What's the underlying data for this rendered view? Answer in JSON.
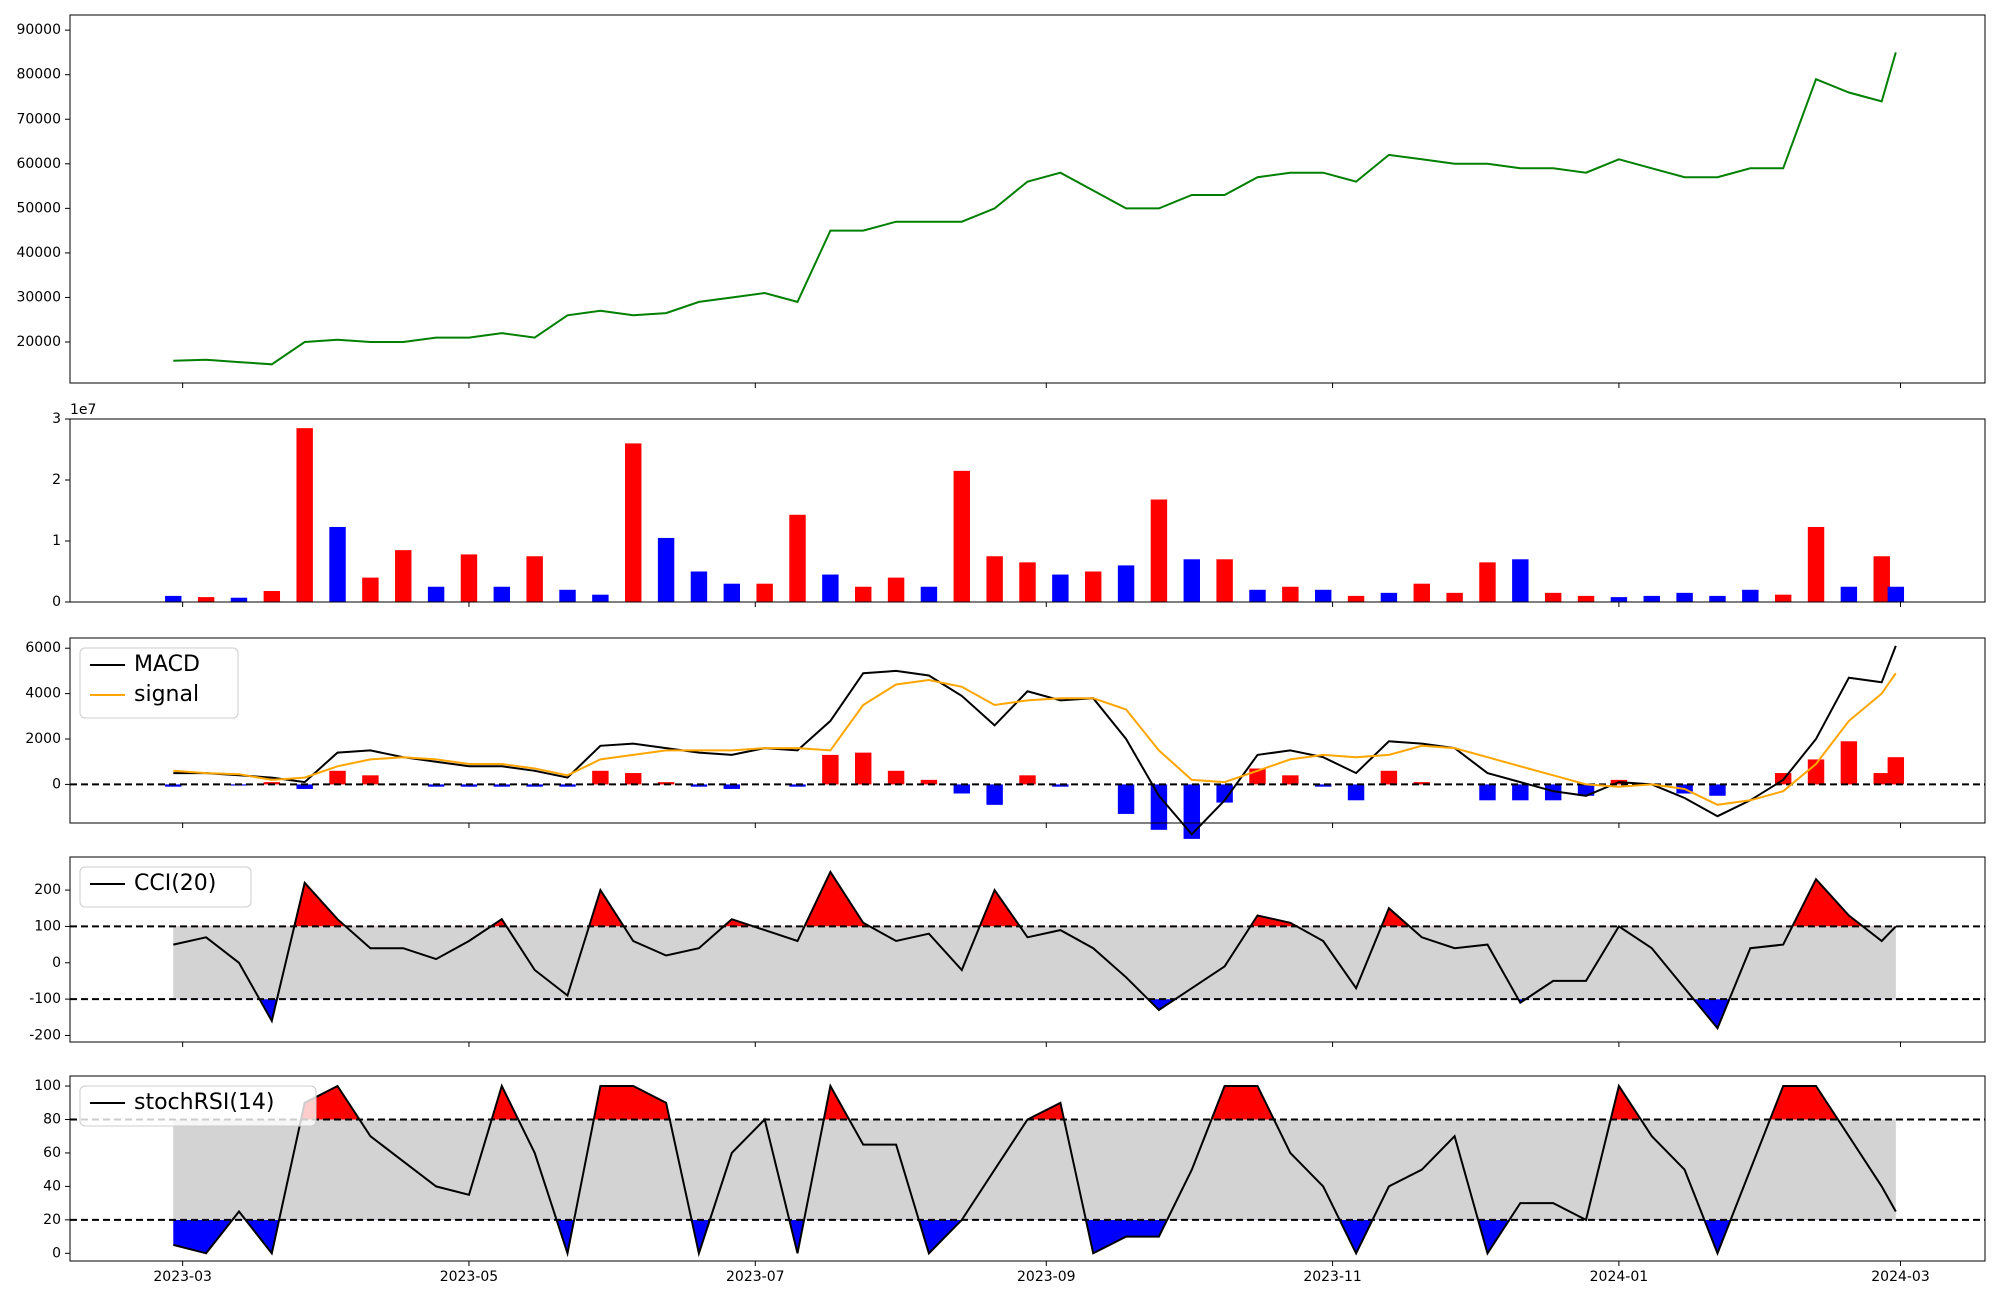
{
  "chart_data": {
    "type": "indicator-panels",
    "x": [
      "2023-02-27",
      "2023-03-06",
      "2023-03-13",
      "2023-03-20",
      "2023-03-27",
      "2023-04-03",
      "2023-04-10",
      "2023-04-17",
      "2023-04-24",
      "2023-05-01",
      "2023-05-08",
      "2023-05-15",
      "2023-05-22",
      "2023-05-29",
      "2023-06-05",
      "2023-06-12",
      "2023-06-19",
      "2023-06-26",
      "2023-07-03",
      "2023-07-10",
      "2023-07-17",
      "2023-07-24",
      "2023-07-31",
      "2023-08-07",
      "2023-08-14",
      "2023-08-21",
      "2023-08-28",
      "2023-09-04",
      "2023-09-11",
      "2023-09-18",
      "2023-09-25",
      "2023-10-02",
      "2023-10-09",
      "2023-10-16",
      "2023-10-23",
      "2023-10-30",
      "2023-11-06",
      "2023-11-13",
      "2023-11-20",
      "2023-11-27",
      "2023-12-04",
      "2023-12-11",
      "2023-12-18",
      "2023-12-25",
      "2024-01-01",
      "2024-01-08",
      "2024-01-15",
      "2024-01-22",
      "2024-01-29",
      "2024-02-05",
      "2024-02-12",
      "2024-02-19",
      "2024-02-26",
      "2024-02-29"
    ],
    "xlim": [
      "2023-02-05",
      "2024-03-19"
    ],
    "xticks": [
      {
        "value": "2023-03-01",
        "label": "2023-03"
      },
      {
        "value": "2023-05-01",
        "label": "2023-05"
      },
      {
        "value": "2023-07-01",
        "label": "2023-07"
      },
      {
        "value": "2023-09-01",
        "label": "2023-09"
      },
      {
        "value": "2023-11-01",
        "label": "2023-11"
      },
      {
        "value": "2024-01-01",
        "label": "2024-01"
      },
      {
        "value": "2024-03-01",
        "label": "2024-03"
      }
    ],
    "panels": [
      {
        "type": "line",
        "color": "#008000",
        "values": [
          15800,
          16000,
          15500,
          15000,
          20000,
          20500,
          20000,
          20000,
          21000,
          21000,
          22000,
          21000,
          26000,
          27000,
          26000,
          26500,
          29000,
          30000,
          31000,
          29000,
          45000,
          45000,
          47000,
          47000,
          47000,
          50000,
          56000,
          58000,
          54000,
          50000,
          50000,
          53000,
          53000,
          57000,
          58000,
          58000,
          56000,
          62000,
          61000,
          60000,
          60000,
          59000,
          59000,
          58000,
          61000,
          59000,
          57000,
          57000,
          59000,
          59000,
          79000,
          76000,
          74000,
          85000
        ],
        "ylim": [
          10800,
          93400
        ],
        "yticks": [
          20000,
          30000,
          40000,
          50000,
          60000,
          70000,
          80000,
          90000
        ]
      },
      {
        "type": "bar",
        "values": [
          1000000,
          800000,
          700000,
          1800000,
          28500000,
          12300000,
          4000000,
          8500000,
          2500000,
          7800000,
          2500000,
          7500000,
          2000000,
          1200000,
          26000000,
          10500000,
          5000000,
          3000000,
          3000000,
          14300000,
          4500000,
          2500000,
          4000000,
          2500000,
          21500000,
          7500000,
          6500000,
          4500000,
          5000000,
          6000000,
          16800000,
          7000000,
          7000000,
          2000000,
          2500000,
          2000000,
          1000000,
          1500000,
          3000000,
          1500000,
          6500000,
          7000000,
          1500000,
          1000000,
          800000,
          1000000,
          1500000,
          1000000,
          2000000,
          1200000,
          12300000,
          2500000,
          7500000,
          2500000
        ],
        "colors": [
          "#0000ff",
          "#ff0000",
          "#0000ff",
          "#ff0000",
          "#ff0000",
          "#0000ff",
          "#ff0000",
          "#ff0000",
          "#0000ff",
          "#ff0000",
          "#0000ff",
          "#ff0000",
          "#0000ff",
          "#0000ff",
          "#ff0000",
          "#0000ff",
          "#0000ff",
          "#0000ff",
          "#ff0000",
          "#ff0000",
          "#0000ff",
          "#ff0000",
          "#ff0000",
          "#0000ff",
          "#ff0000",
          "#ff0000",
          "#ff0000",
          "#0000ff",
          "#ff0000",
          "#0000ff",
          "#ff0000",
          "#0000ff",
          "#ff0000",
          "#0000ff",
          "#ff0000",
          "#0000ff",
          "#ff0000",
          "#0000ff",
          "#ff0000",
          "#ff0000",
          "#ff0000",
          "#0000ff",
          "#ff0000",
          "#ff0000",
          "#0000ff",
          "#0000ff",
          "#0000ff",
          "#0000ff",
          "#0000ff",
          "#ff0000",
          "#ff0000",
          "#0000ff",
          "#ff0000",
          "#0000ff"
        ],
        "ylim": [
          0,
          30000000
        ],
        "yticks": [
          0,
          {
            "value": 10000000,
            "label": "1"
          },
          {
            "value": 20000000,
            "label": "2"
          },
          {
            "value": 30000000,
            "label": "3"
          }
        ],
        "y_offset_label": "1e7"
      },
      {
        "type": "macd",
        "legend": "upper left",
        "series": [
          {
            "name": "MACD",
            "color": "#000000",
            "values": [
              500,
              500,
              400,
              300,
              100,
              1400,
              1500,
              1200,
              1000,
              800,
              800,
              600,
              300,
              1700,
              1800,
              1600,
              1400,
              1300,
              1600,
              1500,
              2800,
              4900,
              5000,
              4800,
              3900,
              2600,
              4100,
              3700,
              3800,
              2000,
              -500,
              -2200,
              -700,
              1300,
              1500,
              1200,
              500,
              1900,
              1800,
              1600,
              500,
              100,
              -300,
              -500,
              100,
              0,
              -600,
              -1400,
              -700,
              200,
              2000,
              4700,
              4500,
              6100
            ]
          },
          {
            "name": "signal",
            "color": "#ffa500",
            "values": [
              600,
              500,
              450,
              200,
              300,
              800,
              1100,
              1200,
              1100,
              900,
              900,
              700,
              400,
              1100,
              1300,
              1500,
              1500,
              1500,
              1600,
              1600,
              1500,
              3500,
              4400,
              4600,
              4300,
              3500,
              3700,
              3800,
              3800,
              3300,
              1500,
              200,
              100,
              600,
              1100,
              1300,
              1200,
              1300,
              1700,
              1600,
              1200,
              800,
              400,
              0,
              -100,
              0,
              -200,
              -900,
              -700,
              -300,
              900,
              2800,
              4000,
              4900
            ]
          }
        ],
        "histogram": {
          "values": [
            -100,
            0,
            -50,
            100,
            -200,
            600,
            400,
            0,
            -100,
            -100,
            -100,
            -100,
            -100,
            600,
            500,
            100,
            -100,
            -200,
            0,
            -100,
            1300,
            1400,
            600,
            200,
            -400,
            -900,
            400,
            -100,
            0,
            -1300,
            -2000,
            -2400,
            -800,
            700,
            400,
            -100,
            -700,
            600,
            100,
            0,
            -700,
            -700,
            -700,
            -500,
            200,
            0,
            -400,
            -500,
            0,
            500,
            1100,
            1900,
            500,
            1200
          ],
          "positive_color": "#ff0000",
          "negative_color": "#0000ff"
        },
        "hlines": [
          0
        ],
        "ylim": [
          -1700,
          6450
        ],
        "yticks": [
          0,
          2000,
          4000,
          6000
        ]
      },
      {
        "type": "band",
        "legend": "upper left",
        "series": [
          {
            "name": "CCI(20)",
            "color": "#000000",
            "values": [
              50,
              70,
              0,
              -160,
              220,
              120,
              40,
              40,
              10,
              60,
              120,
              -20,
              -90,
              200,
              60,
              20,
              40,
              120,
              90,
              60,
              250,
              110,
              60,
              80,
              -20,
              200,
              70,
              90,
              40,
              -40,
              -130,
              -70,
              -10,
              130,
              110,
              60,
              -70,
              150,
              70,
              40,
              50,
              -110,
              -50,
              -50,
              100,
              40,
              -70,
              -180,
              40,
              50,
              230,
              130,
              60,
              100
            ]
          }
        ],
        "hlines": [
          -100,
          100
        ],
        "band_color": "#d3d3d3",
        "above_color": "#ff0000",
        "below_color": "#0000ff",
        "ylim": [
          -218,
          291
        ],
        "yticks": [
          -200,
          -100,
          0,
          100,
          200
        ]
      },
      {
        "type": "band",
        "legend": "upper left",
        "series": [
          {
            "name": "stochRSI(14)",
            "color": "#000000",
            "values": [
              5,
              0,
              25,
              0,
              90,
              100,
              70,
              55,
              40,
              35,
              100,
              60,
              0,
              100,
              100,
              90,
              0,
              60,
              80,
              0,
              100,
              65,
              65,
              0,
              20,
              50,
              80,
              90,
              0,
              10,
              10,
              50,
              100,
              100,
              60,
              40,
              0,
              40,
              50,
              70,
              0,
              30,
              30,
              20,
              100,
              70,
              50,
              0,
              50,
              100,
              100,
              70,
              40,
              25
            ]
          }
        ],
        "hlines": [
          20,
          80
        ],
        "band_color": "#d3d3d3",
        "above_color": "#ff0000",
        "below_color": "#0000ff",
        "ylim": [
          -4.6,
          106
        ],
        "yticks": [
          0,
          20,
          40,
          60,
          80,
          100
        ]
      }
    ]
  }
}
